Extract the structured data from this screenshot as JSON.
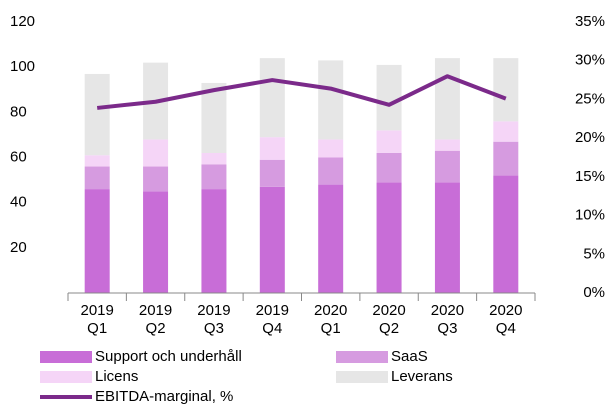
{
  "chart_data": {
    "type": "bar",
    "stacked": true,
    "categories": [
      [
        "2019",
        "Q1"
      ],
      [
        "2019",
        "Q2"
      ],
      [
        "2019",
        "Q3"
      ],
      [
        "2019",
        "Q4"
      ],
      [
        "2020",
        "Q1"
      ],
      [
        "2020",
        "Q2"
      ],
      [
        "2020",
        "Q3"
      ],
      [
        "2020",
        "Q4"
      ]
    ],
    "series": [
      {
        "name": "Support och underhåll",
        "color": "#c86dd7",
        "values": [
          46,
          45,
          46,
          47,
          48,
          49,
          49,
          52
        ]
      },
      {
        "name": "SaaS",
        "color": "#d69be0",
        "values": [
          10,
          11,
          11,
          12,
          12,
          13,
          14,
          15
        ]
      },
      {
        "name": "Licens",
        "color": "#f5d5f7",
        "values": [
          5,
          12,
          5,
          10,
          8,
          10,
          5,
          9
        ]
      },
      {
        "name": "Leverans",
        "color": "#e6e6e6",
        "values": [
          36,
          34,
          31,
          35,
          35,
          29,
          36,
          28
        ]
      },
      {
        "name": "EBITDA-marginal, %",
        "color": "#7b2a8a",
        "type": "line",
        "axis": "y2",
        "values": [
          23.9,
          24.7,
          26.2,
          27.5,
          26.4,
          24.3,
          28.0,
          25.1
        ]
      }
    ],
    "ylim": [
      0,
      120
    ],
    "yticks": [
      20,
      40,
      60,
      80,
      100,
      120
    ],
    "y2lim": [
      0,
      35
    ],
    "y2ticks": [
      {
        "value": 0,
        "label": "0%"
      },
      {
        "value": 5,
        "label": "5%"
      },
      {
        "value": 10,
        "label": "10%"
      },
      {
        "value": 15,
        "label": "15%"
      },
      {
        "value": 20,
        "label": "20%"
      },
      {
        "value": 25,
        "label": "25%"
      },
      {
        "value": 30,
        "label": "30%"
      },
      {
        "value": 35,
        "label": "35%"
      }
    ],
    "grid": false,
    "legend": "bottom"
  }
}
